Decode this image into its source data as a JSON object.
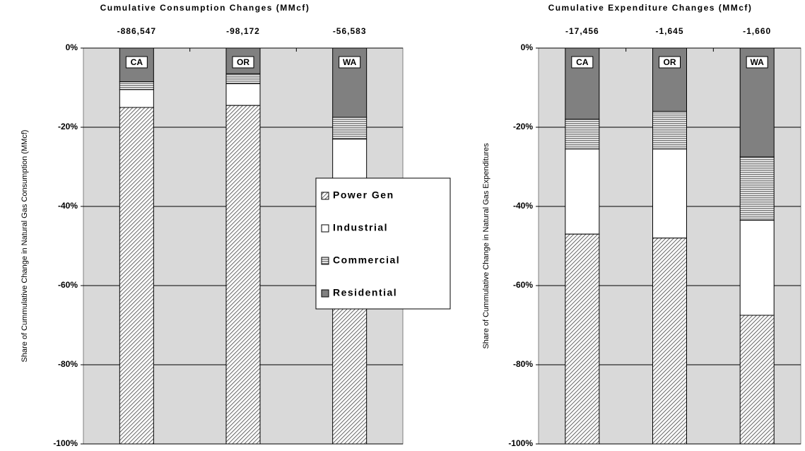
{
  "chart_data": [
    {
      "type": "stacked-bar",
      "title": "Cumulative Consumption Changes (MMcf)",
      "y_label": "Share of Cummulative Change in Natural Gas Consumption (MMcf)",
      "categories": [
        "CA",
        "OR",
        "WA"
      ],
      "totals": {
        "values": [
          -886547,
          -98172,
          -56583
        ],
        "value_labels": [
          "-886,547",
          "-98,172",
          "-56,583"
        ]
      },
      "series": [
        {
          "name": "Residential",
          "color": "#808080",
          "pattern": "solid",
          "values": [
            -8.5,
            -6.5,
            -17.5
          ]
        },
        {
          "name": "Commercial",
          "color": "#808080",
          "pattern": "horizontal",
          "values": [
            -2,
            -2.5,
            -5.5
          ]
        },
        {
          "name": "Industrial",
          "color": "#ffffff",
          "pattern": "solid",
          "values": [
            -4.5,
            -5.5,
            -12.5
          ]
        },
        {
          "name": "Power Gen",
          "color": "#404040",
          "pattern": "diagonal",
          "values": [
            -85,
            -85.5,
            -64.5
          ]
        }
      ],
      "ylim": [
        -100,
        0
      ],
      "yticks": [
        {
          "value": -100,
          "label": "-100%"
        },
        {
          "value": -80,
          "label": "-80%"
        },
        {
          "value": -60,
          "label": "-60%"
        },
        {
          "value": -40,
          "label": "-40%"
        },
        {
          "value": -20,
          "label": "-20%"
        },
        {
          "value": 0,
          "label": "0%"
        }
      ],
      "grid": true,
      "legend": true
    },
    {
      "type": "stacked-bar",
      "title": "Cumulative Expenditure Changes (MMcf)",
      "y_label": "Share of Cummulative Change in Natural Gas Expenditures",
      "categories": [
        "CA",
        "OR",
        "WA"
      ],
      "totals": {
        "values": [
          -17456,
          -1645,
          -1660
        ],
        "value_labels": [
          "-17,456",
          "-1,645",
          "-1,660"
        ]
      },
      "series": [
        {
          "name": "Residential",
          "color": "#808080",
          "pattern": "solid",
          "values": [
            -18,
            -16,
            -27.5
          ]
        },
        {
          "name": "Commercial",
          "color": "#808080",
          "pattern": "horizontal",
          "values": [
            -7.5,
            -9.5,
            -16
          ]
        },
        {
          "name": "Industrial",
          "color": "#ffffff",
          "pattern": "solid",
          "values": [
            -21.5,
            -22.5,
            -24
          ]
        },
        {
          "name": "Power Gen",
          "color": "#404040",
          "pattern": "diagonal",
          "values": [
            -53,
            -52,
            -32.5
          ]
        }
      ],
      "ylim": [
        -100,
        0
      ],
      "yticks": [
        {
          "value": -100,
          "label": "-100%"
        },
        {
          "value": -80,
          "label": "-80%"
        },
        {
          "value": -60,
          "label": "-60%"
        },
        {
          "value": -40,
          "label": "-40%"
        },
        {
          "value": -20,
          "label": "-20%"
        },
        {
          "value": 0,
          "label": "0%"
        }
      ],
      "grid": true,
      "legend": false
    }
  ]
}
